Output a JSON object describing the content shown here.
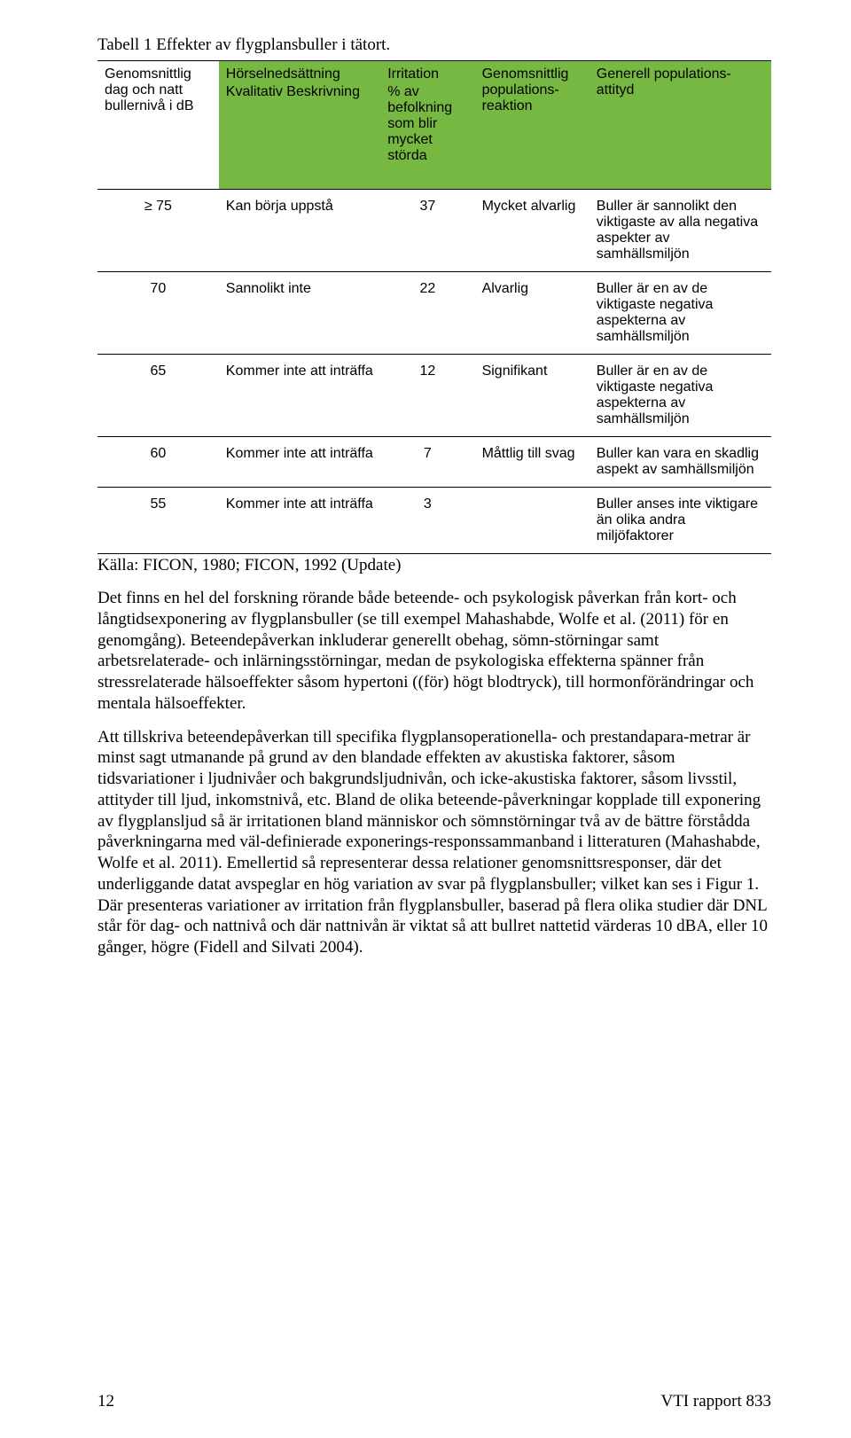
{
  "caption": "Tabell 1 Effekter av flygplansbuller i tätort.",
  "table": {
    "colors": {
      "header_green": "#77b843",
      "border": "#000000",
      "text": "#000000",
      "background": "#ffffff"
    },
    "header": {
      "c1": "Genomsnittlig dag och natt bullernivå i dB",
      "c2a": "Hörselnedsättning",
      "c2b": "Kvalitativ Beskrivning",
      "c3a": "Irritation",
      "c3b": "% av befolkning som blir mycket störda",
      "c4": "Genomsnittlig populations-reaktion",
      "c5": "Generell populations-attityd"
    },
    "rows": [
      {
        "db": "≥ 75",
        "hors": "Kan börja uppstå",
        "irr": "37",
        "pop": "Mycket alvarlig",
        "gen": "Buller är sannolikt den viktigaste av alla negativa aspekter av samhällsmiljön"
      },
      {
        "db": "70",
        "hors": "Sannolikt inte",
        "irr": "22",
        "pop": "Alvarlig",
        "gen": "Buller är en av de viktigaste negativa aspekterna av samhällsmiljön"
      },
      {
        "db": "65",
        "hors": "Kommer inte att inträffa",
        "irr": "12",
        "pop": "Signifikant",
        "gen": "Buller är en av de viktigaste negativa aspekterna av samhällsmiljön"
      },
      {
        "db": "60",
        "hors": "Kommer inte att inträffa",
        "irr": "7",
        "pop": "Måttlig till svag",
        "gen": "Buller kan vara en skadlig aspekt av samhällsmiljön"
      },
      {
        "db": "55",
        "hors": "Kommer inte att inträffa",
        "irr": "3",
        "pop": "",
        "gen": "Buller anses inte viktigare än olika andra miljöfaktorer"
      }
    ]
  },
  "source": "Källa: FICON, 1980; FICON, 1992 (Update)",
  "paragraphs": {
    "p1": "Det finns en hel del forskning rörande både beteende- och psykologisk påverkan från kort- och långtidsexponering av flygplansbuller (se till exempel Mahashabde, Wolfe et al. (2011) för en genomgång). Beteendepåverkan inkluderar generellt obehag, sömn-störningar samt arbetsrelaterade- och inlärningsstörningar, medan de psykologiska effekterna spänner från stressrelaterade hälsoeffekter såsom hypertoni ((för) högt blodtryck), till hormonförändringar och mentala hälsoeffekter.",
    "p2": "Att tillskriva beteendepåverkan till specifika flygplansoperationella- och prestandapara-metrar är minst sagt utmanande på grund av den blandade effekten av akustiska faktorer, såsom tidsvariationer i ljudnivåer och bakgrundsljudnivån, och icke-akustiska faktorer, såsom livsstil, attityder till ljud, inkomstnivå, etc. Bland de olika beteende-påverkningar kopplade till exponering av flygplansljud så är irritationen bland människor och sömnstörningar två av de bättre förstådda påverkningarna med väl-definierade exponerings-responssammanband i litteraturen (Mahashabde, Wolfe et al. 2011). Emellertid så representerar dessa relationer genomsnittsresponser, där det underliggande datat avspeglar en hög variation av svar på flygplansbuller; vilket kan ses i Figur 1. Där presenteras variationer av irritation från flygplansbuller, baserad på flera olika studier där DNL står för dag- och nattnivå och där nattnivån är viktat så att bullret nattetid värderas 10 dBA, eller 10 gånger, högre (Fidell and Silvati 2004)."
  },
  "footer": {
    "page": "12",
    "report": "VTI rapport 833"
  }
}
